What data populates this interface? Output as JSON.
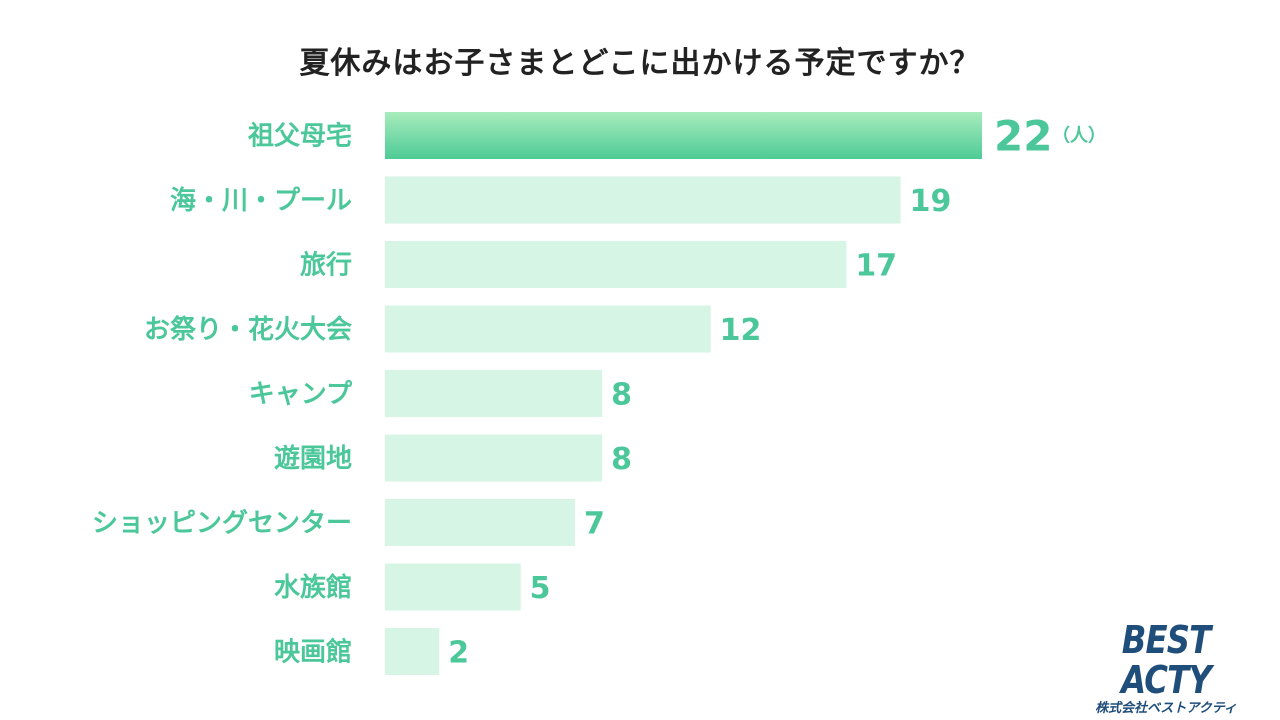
{
  "chart_data": {
    "type": "bar",
    "orientation": "horizontal",
    "title": "夏休みはお子さまとどこに出かける予定ですか？",
    "categories": [
      "祖父母宅",
      "海・川・プール",
      "旅行",
      "お祭り・花火大会",
      "キャンプ",
      "遊園地",
      "ショッピングセンター",
      "水族館",
      "映画館"
    ],
    "values": [
      22,
      19,
      17,
      12,
      8,
      8,
      7,
      5,
      2
    ],
    "unit": "（人）",
    "xlim": [
      0,
      22
    ],
    "grid": false,
    "legend": "none"
  },
  "colors": {
    "label": "#4bc79a",
    "highlight_top": "#a8ecbd",
    "highlight_bottom": "#4ecb96",
    "bar": "#d6f5e4",
    "title": "#222222",
    "logo": "#1f4e7a"
  },
  "logo": {
    "main": "BEST ACTY",
    "sub": "株式会社ベストアクティ"
  }
}
